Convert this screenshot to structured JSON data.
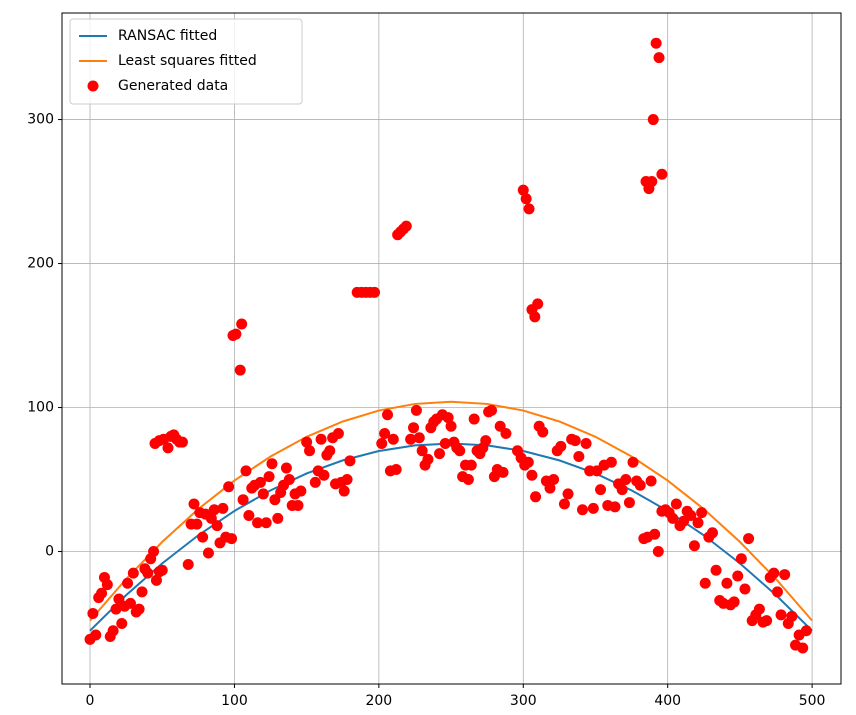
{
  "chart_data": {
    "type": "scatter",
    "xlim": [
      -19.4,
      520
    ],
    "ylim": [
      -92,
      374
    ],
    "xticks": [
      0,
      100,
      200,
      300,
      400,
      500
    ],
    "yticks": [
      0,
      100,
      200,
      300
    ],
    "grid": true,
    "legend": "upper left",
    "series": [
      {
        "name": "RANSAC fitted",
        "type": "line",
        "color": "#1f77b4",
        "x": [
          0,
          25,
          50,
          75,
          100,
          125,
          150,
          175,
          200,
          225,
          250,
          275,
          300,
          325,
          350,
          375,
          400,
          425,
          450,
          475,
          500
        ],
        "values": [
          -55,
          -30.3,
          -8.2,
          11.3,
          28.2,
          42.5,
          54.2,
          63.3,
          69.8,
          73.7,
          75,
          73.7,
          69.8,
          63.3,
          54.2,
          42.5,
          28.2,
          11.3,
          -8.2,
          -30.3,
          -55
        ]
      },
      {
        "name": "Least squares fitted",
        "type": "line",
        "color": "#ff7f0e",
        "x": [
          0,
          25,
          50,
          75,
          100,
          125,
          150,
          175,
          200,
          225,
          250,
          275,
          300,
          325,
          350,
          375,
          400,
          425,
          450,
          475,
          500
        ],
        "values": [
          -48,
          -19.1,
          6.7,
          29.5,
          49.3,
          66,
          79.7,
          90.3,
          97.9,
          102.5,
          104,
          102.5,
          97.9,
          90.3,
          79.7,
          66,
          49.3,
          29.5,
          6.7,
          -19.1,
          -48
        ]
      },
      {
        "name": "Generated data",
        "type": "scatter",
        "color": "#ff0000",
        "x": [
          0,
          2,
          4,
          6,
          8,
          10,
          12,
          14,
          16,
          18,
          20,
          22,
          24,
          26,
          28,
          30,
          32,
          34,
          36,
          38,
          40,
          42,
          44,
          46,
          48,
          50,
          68,
          70,
          72,
          74,
          76,
          78,
          80,
          82,
          84,
          86,
          88,
          90,
          92,
          94,
          96,
          98,
          106,
          108,
          110,
          112,
          114,
          116,
          118,
          120,
          122,
          124,
          126,
          128,
          130,
          132,
          134,
          136,
          138,
          140,
          142,
          144,
          146,
          150,
          152,
          156,
          158,
          160,
          162,
          164,
          166,
          168,
          170,
          172,
          174,
          176,
          178,
          180,
          202,
          204,
          206,
          208,
          210,
          212,
          222,
          224,
          226,
          228,
          230,
          232,
          234,
          236,
          238,
          240,
          242,
          244,
          246,
          248,
          250,
          252,
          254,
          256,
          258,
          260,
          262,
          264,
          266,
          268,
          270,
          272,
          274,
          276,
          278,
          280,
          282,
          284,
          286,
          288,
          296,
          298.5,
          301,
          303.5,
          306,
          308.5,
          311,
          313.5,
          316,
          318.5,
          321,
          323.5,
          326,
          328.5,
          331,
          333.5,
          336,
          338.5,
          341,
          343.5,
          346,
          348.5,
          351,
          353.5,
          356,
          358.5,
          361,
          363.5,
          366,
          368.5,
          371,
          373.5,
          376,
          378.5,
          381,
          383.5,
          386,
          388.5,
          391,
          393.5,
          396,
          398.5,
          401,
          403.5,
          406,
          408.5,
          411,
          413.5,
          416,
          418.5,
          421,
          423.5,
          426,
          428.5,
          431,
          433.5,
          436,
          438.5,
          441,
          443.5,
          446,
          448.5,
          451,
          453.5,
          456,
          458.5,
          461,
          463.5,
          466,
          468.5,
          471,
          473.5,
          476,
          478.5,
          481,
          483.5,
          486,
          488.5,
          491,
          493.5,
          496,
          99,
          101,
          105,
          104,
          185,
          188,
          191,
          194,
          197,
          213,
          215,
          217,
          219,
          300,
          302,
          304,
          306,
          308,
          310,
          385,
          387,
          389,
          390,
          392,
          394,
          396,
          45,
          48,
          51,
          54,
          56,
          58,
          60,
          62,
          64
        ],
        "values": [
          -61,
          -43,
          -58,
          -32,
          -29,
          -18,
          -23,
          -59,
          -55,
          -40,
          -33,
          -50,
          -38,
          -22,
          -36,
          -15,
          -42,
          -40,
          -28,
          -12,
          -15,
          -5,
          0,
          -20,
          -14,
          -13,
          -9,
          19,
          33,
          19,
          27,
          10,
          26,
          -1,
          23,
          29,
          18,
          6,
          30,
          10,
          45,
          9,
          36,
          56,
          25,
          44,
          46,
          20,
          48,
          40,
          20,
          52,
          61,
          36,
          23,
          41,
          46,
          58,
          50,
          32,
          40,
          32,
          42,
          76,
          70,
          48,
          56,
          78,
          53,
          67,
          70,
          79,
          47,
          82,
          48,
          42,
          50,
          63,
          75,
          82,
          95,
          56,
          78,
          57,
          78,
          86,
          98,
          79,
          70,
          60,
          64,
          86,
          90,
          92,
          68,
          95,
          75,
          93,
          87,
          76,
          72,
          70,
          52,
          60,
          50,
          60,
          92,
          70,
          68,
          72,
          77,
          97,
          98,
          52,
          57,
          87,
          55,
          82,
          70,
          65,
          60,
          62,
          53,
          38,
          87,
          83,
          49,
          44,
          50,
          70,
          73,
          33,
          40,
          78,
          77,
          66,
          29,
          75,
          56,
          30,
          56,
          43,
          60,
          32,
          62,
          31,
          47,
          43,
          50,
          34,
          62,
          49,
          46,
          9,
          10,
          49,
          12,
          0,
          28,
          29,
          27,
          23,
          33,
          18,
          21,
          28,
          25,
          4,
          20,
          27,
          -22,
          10,
          13,
          -13,
          -34,
          -36,
          -22,
          -37,
          -35,
          -17,
          -5,
          -26,
          9,
          -48,
          -44,
          -40,
          -49,
          -48,
          -18,
          -15,
          -28,
          -44,
          -16,
          -50,
          -45,
          -65,
          -58,
          -67,
          -55,
          150,
          151,
          158,
          126,
          180,
          180,
          180,
          180,
          180,
          220,
          222,
          224,
          226,
          251,
          245,
          238,
          168,
          163,
          172,
          257,
          252,
          257,
          300,
          353,
          343,
          262,
          75,
          77,
          78,
          72,
          80,
          81,
          78,
          76,
          76
        ]
      }
    ]
  }
}
